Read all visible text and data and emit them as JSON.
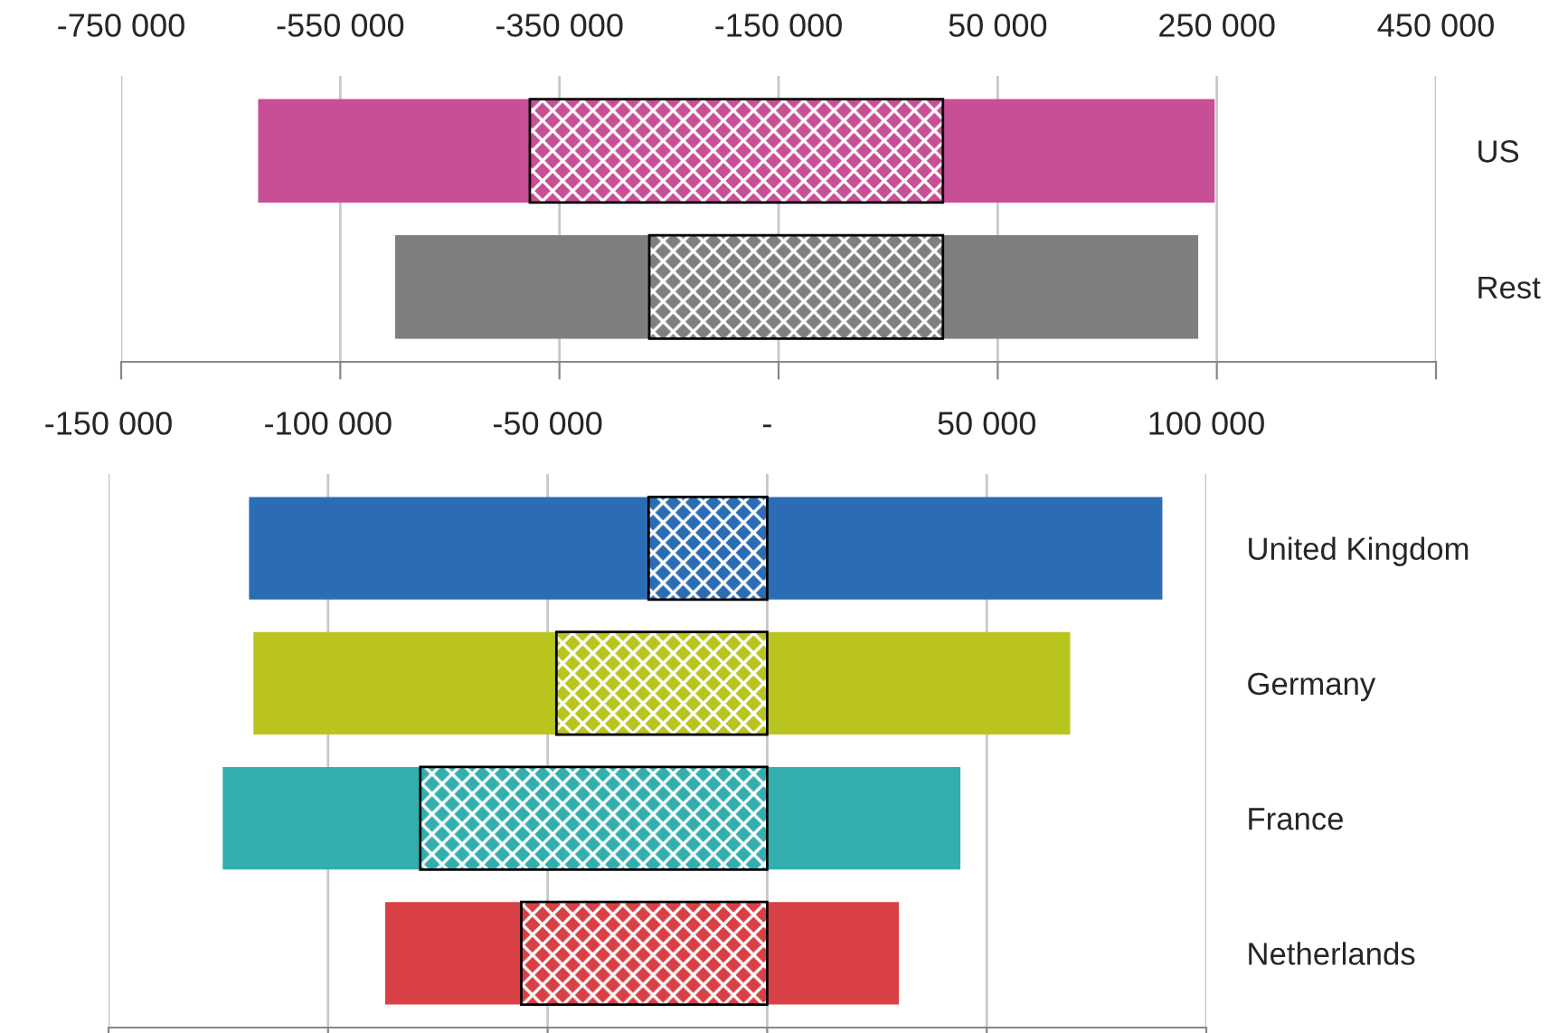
{
  "chart_data": [
    {
      "type": "bar",
      "orientation": "horizontal",
      "categories": [
        "US",
        "Rest"
      ],
      "series": [
        {
          "colors": [
            "#c84f96",
            "#7f7f7f"
          ],
          "base": [
            -625000,
            -500000
          ],
          "values": [
            873000,
            733000
          ]
        },
        {
          "colors": [
            "#c84f96",
            "#7f7f7f"
          ],
          "base": [
            -377000,
            -268000
          ],
          "values": [
            377000,
            268000
          ]
        }
      ],
      "xlim": [
        -750000,
        450000
      ],
      "xticks": [
        {
          "value": -750000,
          "label": "-750 000"
        },
        {
          "value": -550000,
          "label": "-550 000"
        },
        {
          "value": -350000,
          "label": "-350 000"
        },
        {
          "value": -150000,
          "label": "-150 000"
        },
        {
          "value": 50000,
          "label": "50 000"
        },
        {
          "value": 250000,
          "label": "250 000"
        },
        {
          "value": 450000,
          "label": "450 000"
        }
      ],
      "grid": "x"
    },
    {
      "type": "bar",
      "orientation": "horizontal",
      "categories": [
        "United Kingdom",
        "Germany",
        "France",
        "Netherlands"
      ],
      "series": [
        {
          "colors": [
            "#2b6db5",
            "#b9c41f",
            "#33aeae",
            "#d94045"
          ],
          "base": [
            -118000,
            -117000,
            -124000,
            -87000
          ],
          "values": [
            208000,
            186000,
            168000,
            117000
          ]
        },
        {
          "colors": [
            "#2b6db5",
            "#b9c41f",
            "#33aeae",
            "#d94045"
          ],
          "base": [
            -27000,
            -48000,
            -79000,
            -56000
          ],
          "values": [
            27000,
            48000,
            79000,
            56000
          ]
        }
      ],
      "xlim": [
        -150000,
        100000
      ],
      "xticks": [
        {
          "value": -150000,
          "label": "-150 000"
        },
        {
          "value": -100000,
          "label": "-100 000"
        },
        {
          "value": -50000,
          "label": "-50 000"
        },
        {
          "value": 0,
          "label": "-"
        },
        {
          "value": 50000,
          "label": "50 000"
        },
        {
          "value": 100000,
          "label": "100 000"
        }
      ],
      "grid": "x"
    }
  ]
}
